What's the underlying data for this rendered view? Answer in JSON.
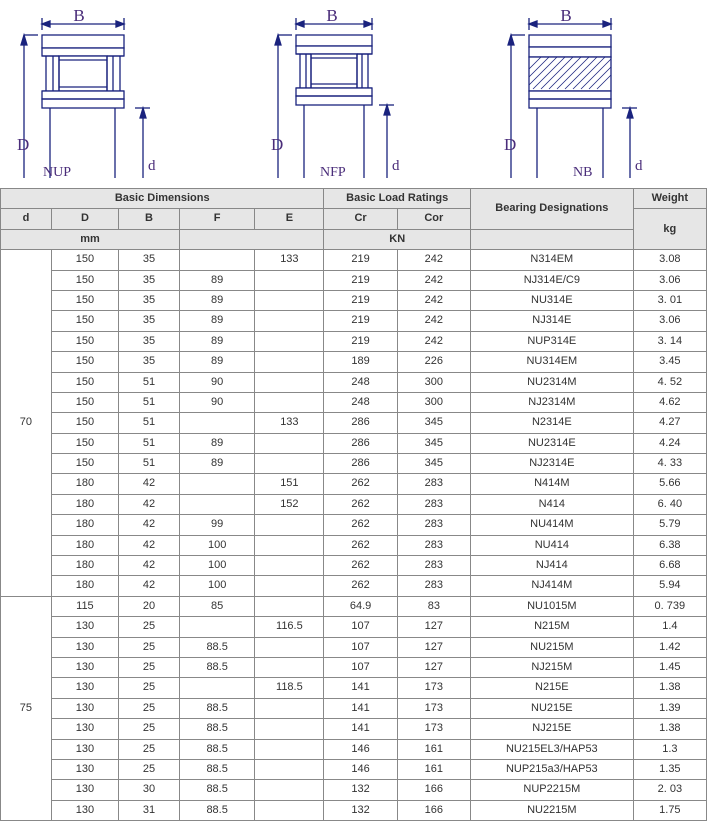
{
  "diagram_labels": {
    "B": "B",
    "D": "D",
    "d": "d",
    "nup": "NUP",
    "nfp": "NFP",
    "nb": "NB"
  },
  "diagram_style": {
    "stroke": "#1a237e",
    "stroke_width": 1.3,
    "label_font": "serif",
    "label_size": 16
  },
  "headers": {
    "basic_dim": "Basic Dimensions",
    "basic_load": "Basic Load Ratings",
    "bearing": "Bearing Designations",
    "weight": "Weight",
    "d": "d",
    "D": "D",
    "B": "B",
    "F": "F",
    "E": "E",
    "Cr": "Cr",
    "Cor": "Cor",
    "mm": "mm",
    "kn": "KN",
    "kg": "kg"
  },
  "groups": [
    {
      "d": "70",
      "rows": [
        {
          "D": "150",
          "B": "35",
          "F": "",
          "E": "133",
          "Cr": "219",
          "Cor": "242",
          "des": "N314EM",
          "w": "3.08"
        },
        {
          "D": "150",
          "B": "35",
          "F": "89",
          "E": "",
          "Cr": "219",
          "Cor": "242",
          "des": "NJ314E/C9",
          "w": "3.06"
        },
        {
          "D": "150",
          "B": "35",
          "F": "89",
          "E": "",
          "Cr": "219",
          "Cor": "242",
          "des": "NU314E",
          "w": "3. 01"
        },
        {
          "D": "150",
          "B": "35",
          "F": "89",
          "E": "",
          "Cr": "219",
          "Cor": "242",
          "des": "NJ314E",
          "w": "3.06"
        },
        {
          "D": "150",
          "B": "35",
          "F": "89",
          "E": "",
          "Cr": "219",
          "Cor": "242",
          "des": "NUP314E",
          "w": "3. 14"
        },
        {
          "D": "150",
          "B": "35",
          "F": "89",
          "E": "",
          "Cr": "189",
          "Cor": "226",
          "des": "NU314EM",
          "w": "3.45"
        },
        {
          "D": "150",
          "B": "51",
          "F": "90",
          "E": "",
          "Cr": "248",
          "Cor": "300",
          "des": "NU2314M",
          "w": "4. 52"
        },
        {
          "D": "150",
          "B": "51",
          "F": "90",
          "E": "",
          "Cr": "248",
          "Cor": "300",
          "des": "NJ2314M",
          "w": "4.62"
        },
        {
          "D": "150",
          "B": "51",
          "F": "",
          "E": "133",
          "Cr": "286",
          "Cor": "345",
          "des": "N2314E",
          "w": "4.27"
        },
        {
          "D": "150",
          "B": "51",
          "F": "89",
          "E": "",
          "Cr": "286",
          "Cor": "345",
          "des": "NU2314E",
          "w": "4.24"
        },
        {
          "D": "150",
          "B": "51",
          "F": "89",
          "E": "",
          "Cr": "286",
          "Cor": "345",
          "des": "NJ2314E",
          "w": "4. 33"
        },
        {
          "D": "180",
          "B": "42",
          "F": "",
          "E": "151",
          "Cr": "262",
          "Cor": "283",
          "des": "N414M",
          "w": "5.66"
        },
        {
          "D": "180",
          "B": "42",
          "F": "",
          "E": "152",
          "Cr": "262",
          "Cor": "283",
          "des": "N414",
          "w": "6. 40"
        },
        {
          "D": "180",
          "B": "42",
          "F": "99",
          "E": "",
          "Cr": "262",
          "Cor": "283",
          "des": "NU414M",
          "w": "5.79"
        },
        {
          "D": "180",
          "B": "42",
          "F": "100",
          "E": "",
          "Cr": "262",
          "Cor": "283",
          "des": "NU414",
          "w": "6.38"
        },
        {
          "D": "180",
          "B": "42",
          "F": "100",
          "E": "",
          "Cr": "262",
          "Cor": "283",
          "des": "NJ414",
          "w": "6.68"
        },
        {
          "D": "180",
          "B": "42",
          "F": "100",
          "E": "",
          "Cr": "262",
          "Cor": "283",
          "des": "NJ414M",
          "w": "5.94"
        }
      ]
    },
    {
      "d": "75",
      "rows": [
        {
          "D": "115",
          "B": "20",
          "F": "85",
          "E": "",
          "Cr": "64.9",
          "Cor": "83",
          "des": "NU1015M",
          "w": "0. 739"
        },
        {
          "D": "130",
          "B": "25",
          "F": "",
          "E": "116.5",
          "Cr": "107",
          "Cor": "127",
          "des": "N215M",
          "w": "1.4"
        },
        {
          "D": "130",
          "B": "25",
          "F": "88.5",
          "E": "",
          "Cr": "107",
          "Cor": "127",
          "des": "NU215M",
          "w": "1.42"
        },
        {
          "D": "130",
          "B": "25",
          "F": "88.5",
          "E": "",
          "Cr": "107",
          "Cor": "127",
          "des": "NJ215M",
          "w": "1.45"
        },
        {
          "D": "130",
          "B": "25",
          "F": "",
          "E": "118.5",
          "Cr": "141",
          "Cor": "173",
          "des": "N215E",
          "w": "1.38"
        },
        {
          "D": "130",
          "B": "25",
          "F": "88.5",
          "E": "",
          "Cr": "141",
          "Cor": "173",
          "des": "NU215E",
          "w": "1.39"
        },
        {
          "D": "130",
          "B": "25",
          "F": "88.5",
          "E": "",
          "Cr": "141",
          "Cor": "173",
          "des": "NJ215E",
          "w": "1.38"
        },
        {
          "D": "130",
          "B": "25",
          "F": "88.5",
          "E": "",
          "Cr": "146",
          "Cor": "161",
          "des": "NU215EL3/HAP53",
          "w": "1.3"
        },
        {
          "D": "130",
          "B": "25",
          "F": "88.5",
          "E": "",
          "Cr": "146",
          "Cor": "161",
          "des": "NUP215a3/HAP53",
          "w": "1.35"
        },
        {
          "D": "130",
          "B": "30",
          "F": "88.5",
          "E": "",
          "Cr": "132",
          "Cor": "166",
          "des": "NUP2215M",
          "w": "2. 03"
        },
        {
          "D": "130",
          "B": "31",
          "F": "88.5",
          "E": "",
          "Cr": "132",
          "Cor": "166",
          "des": "NU2215M",
          "w": "1.75"
        }
      ]
    }
  ]
}
